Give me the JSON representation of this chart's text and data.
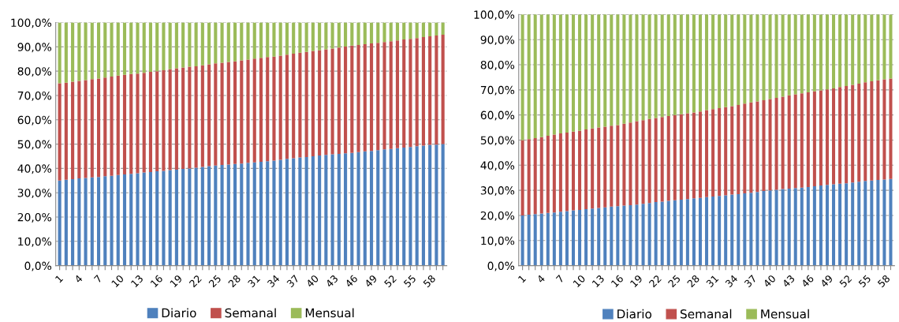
{
  "chart_data": [
    {
      "type": "bar",
      "stacked": true,
      "grid": "y",
      "legend": "bottom",
      "categories": [
        "1",
        null,
        null,
        "4",
        null,
        null,
        "7",
        null,
        null,
        "10",
        null,
        null,
        "13",
        null,
        null,
        "16",
        null,
        null,
        "19",
        null,
        null,
        "22",
        null,
        null,
        "25",
        null,
        null,
        "28",
        null,
        null,
        "31",
        null,
        null,
        "34",
        null,
        null,
        "37",
        null,
        null,
        "40",
        null,
        null,
        "43",
        null,
        null,
        "46",
        null,
        null,
        "49",
        null,
        null,
        "52",
        null,
        null,
        "55",
        null,
        null,
        "58",
        null,
        null
      ],
      "ylim": [
        0,
        100
      ],
      "yticks": [
        {
          "value": 0,
          "label": "0,0%"
        },
        {
          "value": 10,
          "label": "10,0%"
        },
        {
          "value": 20,
          "label": "20,0%"
        },
        {
          "value": 30,
          "label": "30,0%"
        },
        {
          "value": 40,
          "label": "40,0%"
        },
        {
          "value": 50,
          "label": "50,0%"
        },
        {
          "value": 60,
          "label": "60,0%"
        },
        {
          "value": 70,
          "label": "70,0%"
        },
        {
          "value": 80,
          "label": "80,0%"
        },
        {
          "value": 90,
          "label": "90,0%"
        },
        {
          "value": 100,
          "label": "100,0%"
        }
      ],
      "series": [
        {
          "name": "Diario",
          "color": "#4f81bd",
          "values": [
            35.0,
            35.3,
            35.6,
            35.9,
            36.1,
            36.3,
            36.5,
            36.8,
            37.0,
            37.3,
            37.5,
            37.8,
            38.0,
            38.3,
            38.5,
            38.8,
            39.0,
            39.3,
            39.5,
            39.8,
            40.0,
            40.3,
            40.6,
            40.9,
            41.2,
            41.4,
            41.6,
            41.8,
            42.0,
            42.3,
            42.5,
            42.7,
            43.0,
            43.2,
            43.5,
            43.9,
            44.2,
            44.5,
            44.7,
            45.0,
            45.3,
            45.6,
            45.8,
            46.0,
            46.2,
            46.4,
            46.7,
            47.0,
            47.2,
            47.5,
            47.8,
            48.0,
            48.3,
            48.6,
            48.8,
            49.1,
            49.4,
            49.7,
            49.8,
            50.0
          ]
        },
        {
          "name": "Semanal",
          "color": "#c0504d",
          "values": [
            40.0,
            40.0,
            40.1,
            40.1,
            40.2,
            40.4,
            40.5,
            40.6,
            40.8,
            40.9,
            41.0,
            41.0,
            41.0,
            41.0,
            41.2,
            41.2,
            41.4,
            41.5,
            41.7,
            41.7,
            41.8,
            41.7,
            41.8,
            41.9,
            42.0,
            42.1,
            42.2,
            42.2,
            42.4,
            42.5,
            42.7,
            42.8,
            42.8,
            42.8,
            42.9,
            42.9,
            43.0,
            43.1,
            43.2,
            43.3,
            43.3,
            43.4,
            43.5,
            43.7,
            43.9,
            44.1,
            44.1,
            44.1,
            44.2,
            44.2,
            44.2,
            44.3,
            44.3,
            44.4,
            44.5,
            44.5,
            44.6,
            44.6,
            44.9,
            45.0
          ]
        },
        {
          "name": "Mensual",
          "color": "#9bbb59",
          "values": [
            25.0,
            24.7,
            24.3,
            24.0,
            23.7,
            23.3,
            23.0,
            22.6,
            22.2,
            21.8,
            21.5,
            21.2,
            21.0,
            20.7,
            20.3,
            20.0,
            19.6,
            19.2,
            18.8,
            18.5,
            18.2,
            18.0,
            17.6,
            17.2,
            16.8,
            16.5,
            16.2,
            16.0,
            15.6,
            15.2,
            14.8,
            14.5,
            14.2,
            14.0,
            13.6,
            13.2,
            12.8,
            12.4,
            12.1,
            11.7,
            11.4,
            11.0,
            10.7,
            10.3,
            9.9,
            9.5,
            9.2,
            8.9,
            8.6,
            8.3,
            8.0,
            7.7,
            7.4,
            7.0,
            6.7,
            6.4,
            6.0,
            5.7,
            5.3,
            5.0
          ]
        }
      ]
    },
    {
      "type": "bar",
      "stacked": true,
      "grid": "y",
      "legend": "bottom",
      "categories": [
        "1",
        null,
        null,
        "4",
        null,
        null,
        "7",
        null,
        null,
        "10",
        null,
        null,
        "13",
        null,
        null,
        "16",
        null,
        null,
        "19",
        null,
        null,
        "22",
        null,
        null,
        "25",
        null,
        null,
        "28",
        null,
        null,
        "31",
        null,
        null,
        "34",
        null,
        null,
        "37",
        null,
        null,
        "40",
        null,
        null,
        "43",
        null,
        null,
        "46",
        null,
        null,
        "49",
        null,
        null,
        "52",
        null,
        null,
        "55",
        null,
        null,
        "58",
        null
      ],
      "ylim": [
        0,
        100
      ],
      "yticks": [
        {
          "value": 0,
          "label": "0,0%"
        },
        {
          "value": 10,
          "label": "10,0%"
        },
        {
          "value": 20,
          "label": "20,0%"
        },
        {
          "value": 30,
          "label": "30,0%"
        },
        {
          "value": 40,
          "label": "40,0%"
        },
        {
          "value": 50,
          "label": "50,0%"
        },
        {
          "value": 60,
          "label": "60,0%"
        },
        {
          "value": 70,
          "label": "70,0%"
        },
        {
          "value": 80,
          "label": "80,0%"
        },
        {
          "value": 90,
          "label": "90,0%"
        },
        {
          "value": 100,
          "label": "100,0%"
        }
      ],
      "series": [
        {
          "name": "Diario",
          "color": "#4f81bd",
          "values": [
            20.0,
            20.3,
            20.5,
            20.8,
            21.0,
            21.2,
            21.5,
            21.7,
            22.0,
            22.2,
            22.5,
            22.7,
            23.0,
            23.2,
            23.5,
            23.7,
            23.9,
            24.1,
            24.3,
            24.6,
            24.9,
            25.3,
            25.5,
            25.8,
            26.0,
            26.3,
            26.5,
            26.8,
            27.0,
            27.3,
            27.5,
            27.8,
            28.0,
            28.3,
            28.5,
            28.8,
            29.0,
            29.3,
            29.7,
            30.0,
            30.2,
            30.5,
            30.7,
            30.9,
            31.1,
            31.3,
            31.6,
            31.9,
            32.2,
            32.4,
            32.6,
            32.8,
            33.1,
            33.4,
            33.7,
            33.9,
            34.1,
            34.3,
            34.5
          ]
        },
        {
          "name": "Semanal",
          "color": "#c0504d",
          "values": [
            30.0,
            30.1,
            30.3,
            30.4,
            30.7,
            31.0,
            31.2,
            31.3,
            31.4,
            31.5,
            31.7,
            31.9,
            32.0,
            32.1,
            32.2,
            32.3,
            32.6,
            32.9,
            33.2,
            33.3,
            33.5,
            33.5,
            33.7,
            33.8,
            34.0,
            34.0,
            34.2,
            34.2,
            34.4,
            34.6,
            34.8,
            34.9,
            35.1,
            35.2,
            35.5,
            35.7,
            36.0,
            36.1,
            36.2,
            36.3,
            36.6,
            36.8,
            37.1,
            37.3,
            37.5,
            37.7,
            37.8,
            37.9,
            38.0,
            38.2,
            38.5,
            38.7,
            38.9,
            39.1,
            39.3,
            39.5,
            39.7,
            39.9,
            40.0
          ]
        },
        {
          "name": "Mensual",
          "color": "#9bbb59",
          "values": [
            50.0,
            49.6,
            49.2,
            48.8,
            48.3,
            47.8,
            47.3,
            47.0,
            46.6,
            46.3,
            45.8,
            45.4,
            45.0,
            44.7,
            44.3,
            44.0,
            43.5,
            43.0,
            42.5,
            42.1,
            41.6,
            41.2,
            40.8,
            40.4,
            40.0,
            39.7,
            39.3,
            39.0,
            38.6,
            38.1,
            37.7,
            37.3,
            36.9,
            36.5,
            36.0,
            35.5,
            35.0,
            34.6,
            34.1,
            33.7,
            33.2,
            32.7,
            32.2,
            31.8,
            31.4,
            31.0,
            30.6,
            30.2,
            29.8,
            29.4,
            28.9,
            28.5,
            28.0,
            27.5,
            27.0,
            26.6,
            26.2,
            25.8,
            25.5
          ]
        }
      ]
    }
  ]
}
